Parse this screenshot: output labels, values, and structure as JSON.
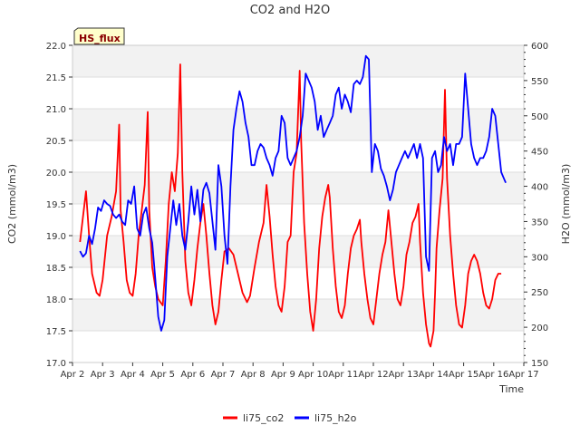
{
  "chart_data": {
    "type": "line",
    "title": "CO2 and H2O",
    "site_badge": "HS_flux",
    "xlabel": "Time",
    "ylabel_left": "CO2 (mmol/m3)",
    "ylabel_right": "H2O (mmol/m3)",
    "x_range_days": [
      2,
      17
    ],
    "ylim_left": [
      17.0,
      22.0
    ],
    "ylim_right": [
      150,
      600
    ],
    "x_ticks": [
      {
        "day": 2,
        "label": "Apr 2"
      },
      {
        "day": 3,
        "label": "Apr 3"
      },
      {
        "day": 4,
        "label": "Apr 4"
      },
      {
        "day": 5,
        "label": "Apr 5"
      },
      {
        "day": 6,
        "label": "Apr 6"
      },
      {
        "day": 7,
        "label": "Apr 7"
      },
      {
        "day": 8,
        "label": "Apr 8"
      },
      {
        "day": 9,
        "label": "Apr 9"
      },
      {
        "day": 10,
        "label": "Apr 10"
      },
      {
        "day": 11,
        "label": "Apr 11"
      },
      {
        "day": 12,
        "label": "Apr 12"
      },
      {
        "day": 13,
        "label": "Apr 13"
      },
      {
        "day": 14,
        "label": "Apr 14"
      },
      {
        "day": 15,
        "label": "Apr 15"
      },
      {
        "day": 16,
        "label": "Apr 16"
      },
      {
        "day": 17,
        "label": "Apr 17"
      }
    ],
    "y_ticks_left": [
      "17.0",
      "17.5",
      "18.0",
      "18.5",
      "19.0",
      "19.5",
      "20.0",
      "20.5",
      "21.0",
      "21.5",
      "22.0"
    ],
    "y_ticks_right": [
      "150",
      "200",
      "250",
      "300",
      "350",
      "400",
      "450",
      "500",
      "550",
      "600"
    ],
    "series": [
      {
        "name": "li75_co2",
        "axis": "left",
        "color": "#ff0000",
        "points": [
          [
            2.25,
            18.9
          ],
          [
            2.35,
            19.3
          ],
          [
            2.45,
            19.7
          ],
          [
            2.55,
            19.0
          ],
          [
            2.65,
            18.4
          ],
          [
            2.8,
            18.1
          ],
          [
            2.9,
            18.05
          ],
          [
            3.0,
            18.3
          ],
          [
            3.15,
            19.0
          ],
          [
            3.3,
            19.3
          ],
          [
            3.45,
            19.7
          ],
          [
            3.55,
            20.75
          ],
          [
            3.6,
            19.4
          ],
          [
            3.7,
            18.9
          ],
          [
            3.8,
            18.3
          ],
          [
            3.9,
            18.1
          ],
          [
            4.0,
            18.05
          ],
          [
            4.1,
            18.4
          ],
          [
            4.2,
            19.0
          ],
          [
            4.3,
            19.4
          ],
          [
            4.4,
            19.8
          ],
          [
            4.5,
            20.95
          ],
          [
            4.55,
            19.4
          ],
          [
            4.65,
            18.5
          ],
          [
            4.75,
            18.2
          ],
          [
            4.85,
            18.0
          ],
          [
            5.0,
            17.9
          ],
          [
            5.1,
            18.6
          ],
          [
            5.2,
            19.5
          ],
          [
            5.3,
            20.0
          ],
          [
            5.4,
            19.7
          ],
          [
            5.5,
            20.3
          ],
          [
            5.58,
            21.7
          ],
          [
            5.65,
            20.0
          ],
          [
            5.75,
            18.6
          ],
          [
            5.85,
            18.1
          ],
          [
            5.95,
            17.9
          ],
          [
            6.05,
            18.3
          ],
          [
            6.15,
            18.8
          ],
          [
            6.25,
            19.2
          ],
          [
            6.35,
            19.5
          ],
          [
            6.45,
            19.0
          ],
          [
            6.55,
            18.4
          ],
          [
            6.65,
            17.9
          ],
          [
            6.75,
            17.6
          ],
          [
            6.85,
            17.8
          ],
          [
            6.95,
            18.3
          ],
          [
            7.05,
            18.75
          ],
          [
            7.2,
            18.8
          ],
          [
            7.35,
            18.7
          ],
          [
            7.5,
            18.4
          ],
          [
            7.65,
            18.1
          ],
          [
            7.8,
            17.95
          ],
          [
            7.9,
            18.05
          ],
          [
            8.05,
            18.5
          ],
          [
            8.2,
            18.9
          ],
          [
            8.35,
            19.2
          ],
          [
            8.45,
            19.8
          ],
          [
            8.55,
            19.3
          ],
          [
            8.65,
            18.7
          ],
          [
            8.75,
            18.2
          ],
          [
            8.85,
            17.9
          ],
          [
            8.95,
            17.8
          ],
          [
            9.05,
            18.2
          ],
          [
            9.15,
            18.9
          ],
          [
            9.25,
            19.0
          ],
          [
            9.35,
            20.0
          ],
          [
            9.45,
            20.3
          ],
          [
            9.55,
            21.6
          ],
          [
            9.6,
            20.5
          ],
          [
            9.7,
            19.2
          ],
          [
            9.8,
            18.4
          ],
          [
            9.9,
            17.8
          ],
          [
            10.0,
            17.5
          ],
          [
            10.1,
            18.0
          ],
          [
            10.2,
            18.8
          ],
          [
            10.3,
            19.3
          ],
          [
            10.4,
            19.6
          ],
          [
            10.5,
            19.8
          ],
          [
            10.55,
            19.6
          ],
          [
            10.65,
            18.8
          ],
          [
            10.75,
            18.2
          ],
          [
            10.85,
            17.8
          ],
          [
            10.95,
            17.7
          ],
          [
            11.05,
            17.9
          ],
          [
            11.15,
            18.4
          ],
          [
            11.25,
            18.8
          ],
          [
            11.35,
            19.0
          ],
          [
            11.45,
            19.1
          ],
          [
            11.55,
            19.25
          ],
          [
            11.6,
            18.9
          ],
          [
            11.7,
            18.4
          ],
          [
            11.8,
            18.0
          ],
          [
            11.9,
            17.7
          ],
          [
            12.0,
            17.6
          ],
          [
            12.1,
            18.0
          ],
          [
            12.2,
            18.4
          ],
          [
            12.3,
            18.7
          ],
          [
            12.4,
            18.9
          ],
          [
            12.5,
            19.4
          ],
          [
            12.6,
            18.9
          ],
          [
            12.7,
            18.4
          ],
          [
            12.8,
            18.0
          ],
          [
            12.9,
            17.9
          ],
          [
            13.0,
            18.2
          ],
          [
            13.1,
            18.7
          ],
          [
            13.2,
            18.9
          ],
          [
            13.3,
            19.2
          ],
          [
            13.4,
            19.3
          ],
          [
            13.5,
            19.5
          ],
          [
            13.55,
            18.9
          ],
          [
            13.65,
            18.1
          ],
          [
            13.75,
            17.6
          ],
          [
            13.85,
            17.3
          ],
          [
            13.9,
            17.25
          ],
          [
            14.0,
            17.5
          ],
          [
            14.05,
            18.1
          ],
          [
            14.1,
            18.8
          ],
          [
            14.2,
            19.4
          ],
          [
            14.3,
            19.9
          ],
          [
            14.38,
            21.3
          ],
          [
            14.45,
            19.9
          ],
          [
            14.55,
            19.0
          ],
          [
            14.65,
            18.4
          ],
          [
            14.75,
            17.9
          ],
          [
            14.85,
            17.6
          ],
          [
            14.95,
            17.55
          ],
          [
            15.05,
            17.9
          ],
          [
            15.15,
            18.4
          ],
          [
            15.25,
            18.6
          ],
          [
            15.35,
            18.7
          ],
          [
            15.45,
            18.6
          ],
          [
            15.55,
            18.4
          ],
          [
            15.65,
            18.1
          ],
          [
            15.75,
            17.9
          ],
          [
            15.85,
            17.85
          ],
          [
            15.95,
            18.0
          ],
          [
            16.05,
            18.3
          ],
          [
            16.15,
            18.4
          ],
          [
            16.25,
            18.4
          ]
        ]
      },
      {
        "name": "li75_h2o",
        "axis": "right",
        "color": "#0000ff",
        "points": [
          [
            2.25,
            308
          ],
          [
            2.35,
            300
          ],
          [
            2.45,
            305
          ],
          [
            2.55,
            330
          ],
          [
            2.65,
            318
          ],
          [
            2.75,
            340
          ],
          [
            2.85,
            370
          ],
          [
            2.95,
            365
          ],
          [
            3.05,
            380
          ],
          [
            3.15,
            375
          ],
          [
            3.25,
            372
          ],
          [
            3.35,
            360
          ],
          [
            3.45,
            355
          ],
          [
            3.55,
            360
          ],
          [
            3.65,
            350
          ],
          [
            3.75,
            345
          ],
          [
            3.85,
            380
          ],
          [
            3.95,
            375
          ],
          [
            4.05,
            400
          ],
          [
            4.15,
            340
          ],
          [
            4.25,
            330
          ],
          [
            4.35,
            360
          ],
          [
            4.45,
            370
          ],
          [
            4.55,
            340
          ],
          [
            4.65,
            320
          ],
          [
            4.75,
            270
          ],
          [
            4.85,
            215
          ],
          [
            4.95,
            195
          ],
          [
            5.05,
            210
          ],
          [
            5.15,
            300
          ],
          [
            5.25,
            340
          ],
          [
            5.35,
            380
          ],
          [
            5.45,
            345
          ],
          [
            5.55,
            375
          ],
          [
            5.65,
            330
          ],
          [
            5.75,
            310
          ],
          [
            5.85,
            350
          ],
          [
            5.95,
            400
          ],
          [
            6.05,
            360
          ],
          [
            6.15,
            395
          ],
          [
            6.25,
            350
          ],
          [
            6.35,
            395
          ],
          [
            6.45,
            405
          ],
          [
            6.55,
            390
          ],
          [
            6.65,
            350
          ],
          [
            6.75,
            310
          ],
          [
            6.85,
            430
          ],
          [
            6.95,
            400
          ],
          [
            7.05,
            330
          ],
          [
            7.15,
            290
          ],
          [
            7.25,
            400
          ],
          [
            7.35,
            480
          ],
          [
            7.45,
            510
          ],
          [
            7.55,
            535
          ],
          [
            7.65,
            520
          ],
          [
            7.75,
            490
          ],
          [
            7.85,
            470
          ],
          [
            7.95,
            430
          ],
          [
            8.05,
            430
          ],
          [
            8.15,
            450
          ],
          [
            8.25,
            460
          ],
          [
            8.35,
            455
          ],
          [
            8.45,
            440
          ],
          [
            8.55,
            430
          ],
          [
            8.65,
            415
          ],
          [
            8.75,
            440
          ],
          [
            8.85,
            450
          ],
          [
            8.95,
            500
          ],
          [
            9.05,
            490
          ],
          [
            9.15,
            440
          ],
          [
            9.25,
            430
          ],
          [
            9.35,
            440
          ],
          [
            9.45,
            450
          ],
          [
            9.55,
            470
          ],
          [
            9.65,
            500
          ],
          [
            9.75,
            560
          ],
          [
            9.85,
            550
          ],
          [
            9.95,
            540
          ],
          [
            10.05,
            520
          ],
          [
            10.15,
            480
          ],
          [
            10.25,
            500
          ],
          [
            10.35,
            470
          ],
          [
            10.45,
            480
          ],
          [
            10.55,
            490
          ],
          [
            10.65,
            500
          ],
          [
            10.75,
            530
          ],
          [
            10.85,
            540
          ],
          [
            10.95,
            510
          ],
          [
            11.05,
            530
          ],
          [
            11.15,
            520
          ],
          [
            11.25,
            505
          ],
          [
            11.35,
            545
          ],
          [
            11.45,
            550
          ],
          [
            11.55,
            545
          ],
          [
            11.65,
            555
          ],
          [
            11.75,
            585
          ],
          [
            11.85,
            580
          ],
          [
            11.9,
            500
          ],
          [
            11.95,
            420
          ],
          [
            12.05,
            460
          ],
          [
            12.15,
            450
          ],
          [
            12.25,
            425
          ],
          [
            12.35,
            415
          ],
          [
            12.45,
            400
          ],
          [
            12.55,
            380
          ],
          [
            12.65,
            395
          ],
          [
            12.75,
            420
          ],
          [
            12.85,
            430
          ],
          [
            12.95,
            440
          ],
          [
            13.05,
            450
          ],
          [
            13.15,
            440
          ],
          [
            13.25,
            450
          ],
          [
            13.35,
            460
          ],
          [
            13.45,
            440
          ],
          [
            13.55,
            460
          ],
          [
            13.65,
            440
          ],
          [
            13.75,
            300
          ],
          [
            13.85,
            280
          ],
          [
            13.95,
            440
          ],
          [
            14.05,
            450
          ],
          [
            14.15,
            420
          ],
          [
            14.25,
            430
          ],
          [
            14.35,
            470
          ],
          [
            14.45,
            450
          ],
          [
            14.55,
            460
          ],
          [
            14.65,
            430
          ],
          [
            14.75,
            460
          ],
          [
            14.85,
            460
          ],
          [
            14.95,
            470
          ],
          [
            15.05,
            560
          ],
          [
            15.15,
            510
          ],
          [
            15.25,
            460
          ],
          [
            15.35,
            440
          ],
          [
            15.45,
            430
          ],
          [
            15.55,
            440
          ],
          [
            15.65,
            440
          ],
          [
            15.75,
            450
          ],
          [
            15.85,
            470
          ],
          [
            15.95,
            510
          ],
          [
            16.05,
            500
          ],
          [
            16.15,
            460
          ],
          [
            16.25,
            420
          ],
          [
            16.35,
            410
          ],
          [
            16.4,
            405
          ]
        ]
      }
    ],
    "legend": {
      "placement": "bottom-center",
      "entries": [
        "li75_co2",
        "li75_h2o"
      ]
    }
  }
}
